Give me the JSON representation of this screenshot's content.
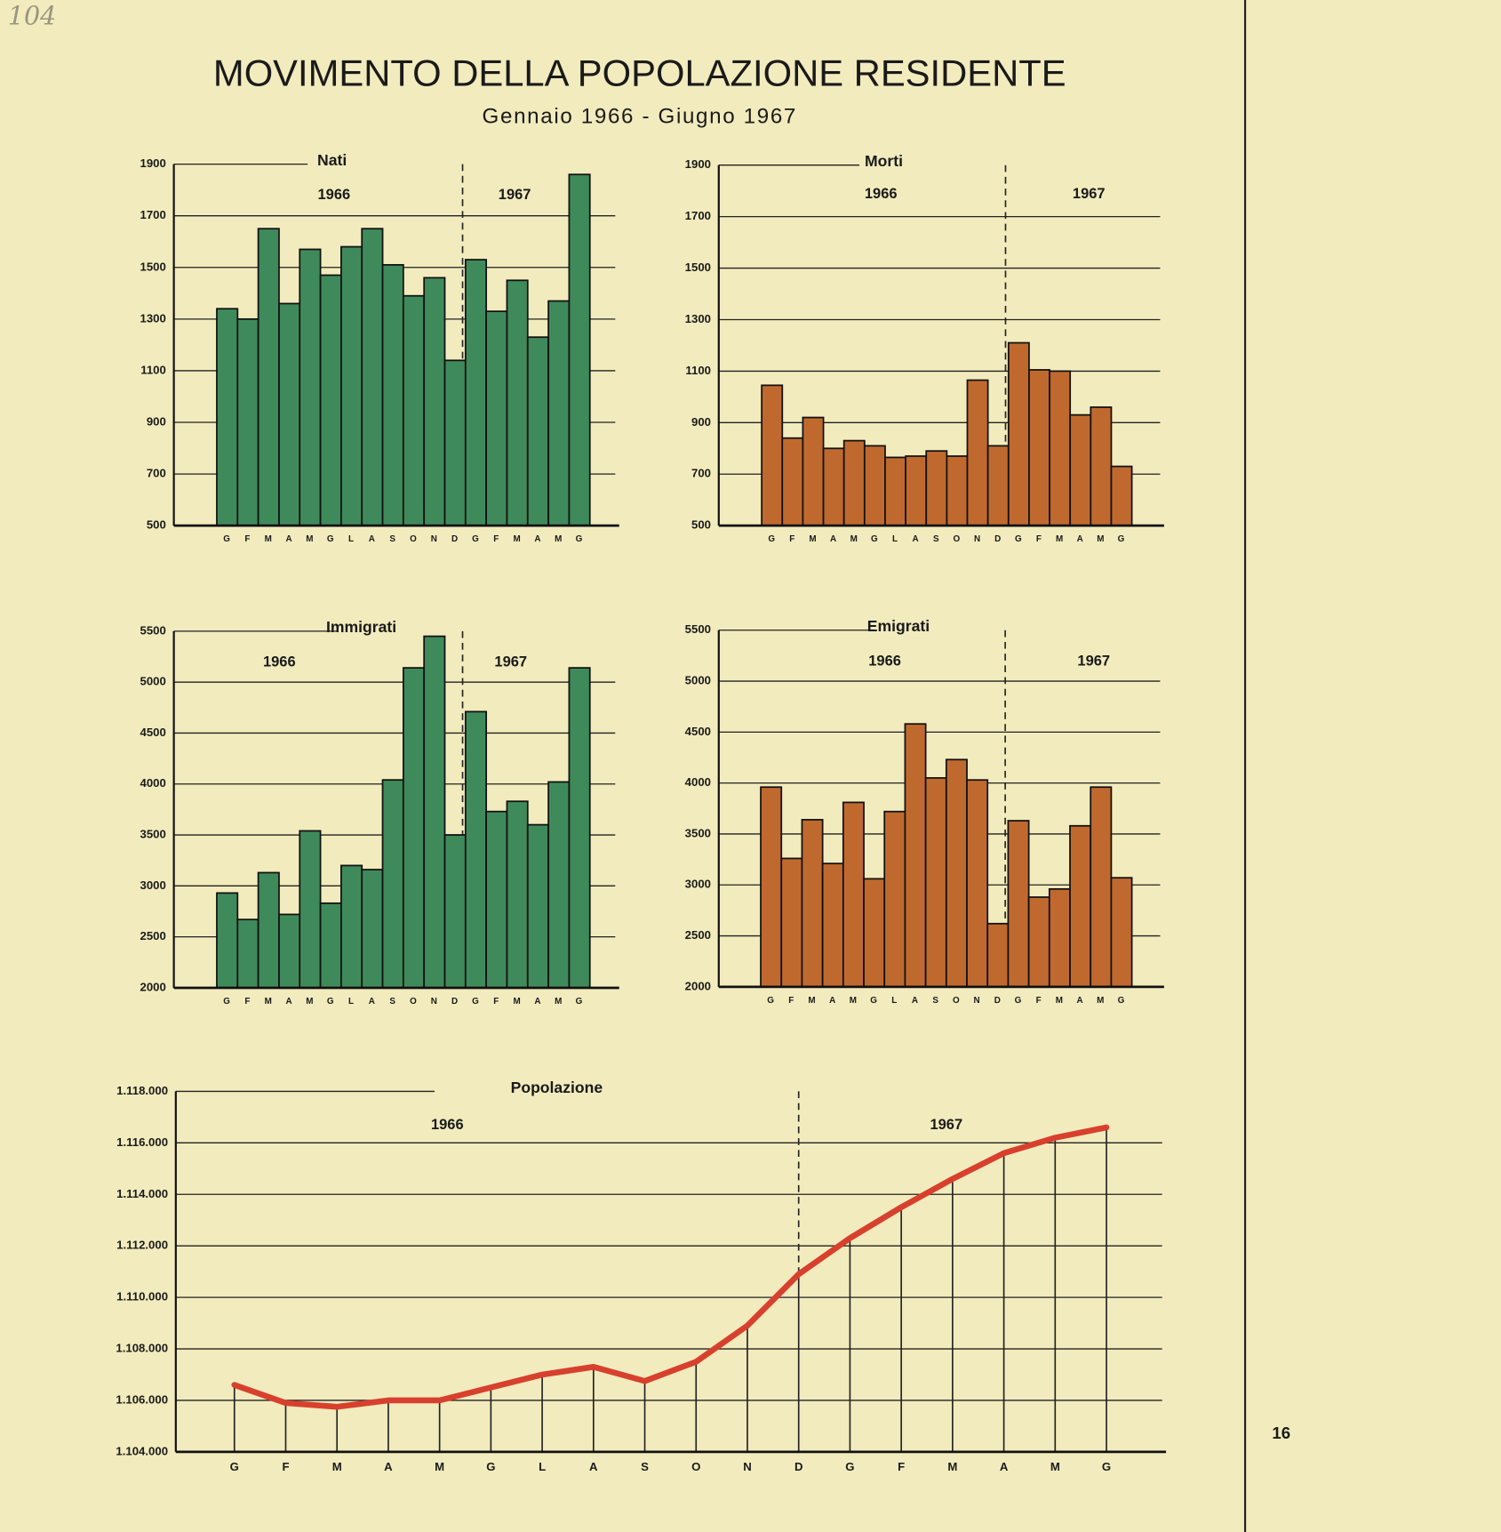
{
  "page": {
    "title": "MOVIMENTO DELLA POPOLAZIONE RESIDENTE",
    "subtitle": "Gennaio 1966 - Giugno 1967",
    "number": "16",
    "note": "104"
  },
  "chart_data": [
    {
      "type": "bar",
      "title": "Nati",
      "annotations": [
        "1966",
        "1967"
      ],
      "categories": [
        "G",
        "F",
        "M",
        "A",
        "M",
        "G",
        "L",
        "A",
        "S",
        "O",
        "N",
        "D",
        "G",
        "F",
        "M",
        "A",
        "M",
        "G"
      ],
      "values": [
        1340,
        1300,
        1650,
        1360,
        1570,
        1470,
        1580,
        1650,
        1510,
        1390,
        1460,
        1140,
        1530,
        1330,
        1450,
        1230,
        1370,
        1860
      ],
      "color": "#3f8a5b",
      "ylim": [
        500,
        1900
      ],
      "yticks": [
        500,
        700,
        900,
        1100,
        1300,
        1500,
        1700,
        1900
      ],
      "grid": true
    },
    {
      "type": "bar",
      "title": "Morti",
      "annotations": [
        "1966",
        "1967"
      ],
      "categories": [
        "G",
        "F",
        "M",
        "A",
        "M",
        "G",
        "L",
        "A",
        "S",
        "O",
        "N",
        "D",
        "G",
        "F",
        "M",
        "A",
        "M",
        "G"
      ],
      "values": [
        1045,
        840,
        920,
        800,
        830,
        810,
        765,
        770,
        790,
        770,
        1065,
        810,
        1210,
        1105,
        1100,
        930,
        960,
        730
      ],
      "color": "#c0692f",
      "ylim": [
        500,
        1900
      ],
      "yticks": [
        500,
        700,
        900,
        1100,
        1300,
        1500,
        1700,
        1900
      ],
      "grid": true
    },
    {
      "type": "bar",
      "title": "Immigrati",
      "annotations": [
        "1966",
        "1967"
      ],
      "categories": [
        "G",
        "F",
        "M",
        "A",
        "M",
        "G",
        "L",
        "A",
        "S",
        "O",
        "N",
        "D",
        "G",
        "F",
        "M",
        "A",
        "M",
        "G"
      ],
      "values": [
        2930,
        2670,
        3130,
        2720,
        3540,
        2830,
        3200,
        3160,
        4040,
        5140,
        5450,
        3500,
        4710,
        3730,
        3830,
        3600,
        4020,
        5140
      ],
      "color": "#3f8a5b",
      "ylim": [
        2000,
        5500
      ],
      "yticks": [
        2000,
        2500,
        3000,
        3500,
        4000,
        4500,
        5000,
        5500
      ],
      "grid": true
    },
    {
      "type": "bar",
      "title": "Emigrati",
      "annotations": [
        "1966",
        "1967"
      ],
      "categories": [
        "G",
        "F",
        "M",
        "A",
        "M",
        "G",
        "L",
        "A",
        "S",
        "O",
        "N",
        "D",
        "G",
        "F",
        "M",
        "A",
        "M",
        "G"
      ],
      "values": [
        3960,
        3260,
        3640,
        3210,
        3810,
        3060,
        3720,
        4580,
        4050,
        4230,
        4030,
        2620,
        3630,
        2880,
        2960,
        3580,
        3960,
        3070
      ],
      "color": "#c0692f",
      "ylim": [
        2000,
        5500
      ],
      "yticks": [
        2000,
        2500,
        3000,
        3500,
        4000,
        4500,
        5000,
        5500
      ],
      "grid": true
    },
    {
      "type": "line",
      "title": "Popolazione",
      "annotations": [
        "1966",
        "1967"
      ],
      "categories": [
        "G",
        "F",
        "M",
        "A",
        "M",
        "G",
        "L",
        "A",
        "S",
        "O",
        "N",
        "D",
        "G",
        "F",
        "M",
        "A",
        "M",
        "G"
      ],
      "values": [
        1106600,
        1105900,
        1105750,
        1106000,
        1106000,
        1106500,
        1107000,
        1107300,
        1106750,
        1107500,
        1108900,
        1110900,
        1112300,
        1113500,
        1114600,
        1115600,
        1116200,
        1116600
      ],
      "color": "#d8402e",
      "ylim": [
        1104000,
        1118000
      ],
      "yticks": [
        {
          "value": 1104000,
          "label": "1.104.000"
        },
        {
          "value": 1106000,
          "label": "1.106.000"
        },
        {
          "value": 1108000,
          "label": "1.108.000"
        },
        {
          "value": 1110000,
          "label": "1.110.000"
        },
        {
          "value": 1112000,
          "label": "1.112.000"
        },
        {
          "value": 1114000,
          "label": "1.114.000"
        },
        {
          "value": 1116000,
          "label": "1.116.000"
        },
        {
          "value": 1118000,
          "label": "1.118.000"
        }
      ],
      "grid": true
    }
  ]
}
